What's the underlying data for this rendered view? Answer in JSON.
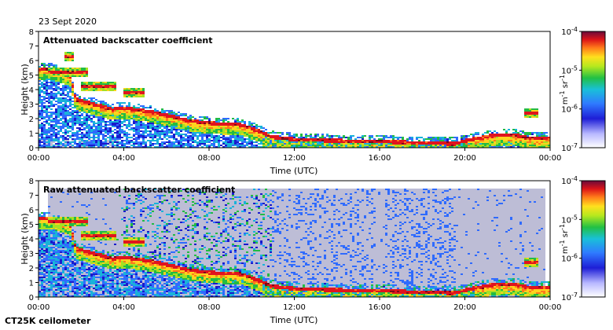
{
  "header": {
    "date": "23 Sept 2020"
  },
  "footer": {
    "instrument": "CT25K ceilometer"
  },
  "colors": {
    "palette": [
      "#1a1acc",
      "#2f6bff",
      "#19b3d9",
      "#22bb44",
      "#a6e022",
      "#ffd21e",
      "#ff7a1a",
      "#e0141e",
      "#7a0a1a"
    ],
    "noise": "#bdbdd6",
    "background": "#ffffff"
  },
  "chart_data": [
    {
      "type": "heatmap",
      "title": "Attenuated backscatter coefficient",
      "xlabel": "Time (UTC)",
      "ylabel": "Height (km)",
      "x_ticks": [
        "00:00",
        "04:00",
        "08:00",
        "12:00",
        "16:00",
        "20:00",
        "00:00"
      ],
      "y_ticks": [
        "0",
        "1",
        "2",
        "3",
        "4",
        "5",
        "6",
        "7",
        "8"
      ],
      "xlim_hours": [
        0,
        24
      ],
      "ylim": [
        0,
        8
      ],
      "colorbar": {
        "scale": "log",
        "range": [
          1e-07,
          0.0001
        ],
        "tick_labels": [
          {
            "base": "10",
            "exp": "-4"
          },
          {
            "base": "10",
            "exp": "-5"
          },
          {
            "base": "10",
            "exp": "-6"
          },
          {
            "base": "10",
            "exp": "-7"
          }
        ],
        "label": {
          "u1": "m",
          "e1": "-1",
          "u2": " sr",
          "e2": "-1"
        }
      },
      "layer_height_km": [
        [
          0.5,
          5.3
        ],
        [
          1.0,
          5.1
        ],
        [
          1.5,
          4.8
        ],
        [
          1.75,
          3.2
        ],
        [
          2.5,
          2.9
        ],
        [
          3.5,
          2.5
        ],
        [
          4.0,
          2.6
        ],
        [
          5.0,
          2.4
        ],
        [
          6.0,
          2.1
        ],
        [
          7.0,
          1.75
        ],
        [
          8.0,
          1.55
        ],
        [
          9.0,
          1.5
        ],
        [
          9.5,
          1.45
        ],
        [
          10.0,
          1.2
        ],
        [
          10.5,
          0.9
        ],
        [
          11.0,
          0.6
        ],
        [
          12.0,
          0.45
        ],
        [
          14.0,
          0.35
        ],
        [
          16.0,
          0.3
        ],
        [
          18.0,
          0.2
        ],
        [
          19.5,
          0.15
        ],
        [
          20.5,
          0.5
        ],
        [
          21.5,
          0.75
        ],
        [
          22.5,
          0.7
        ],
        [
          23.0,
          0.5
        ],
        [
          24.0,
          0.5
        ]
      ],
      "elevated_layers": [
        {
          "t0": 0.4,
          "t1": 2.3,
          "h": 5.2
        },
        {
          "t0": 2.0,
          "t1": 3.7,
          "h": 4.2
        },
        {
          "t0": 4.0,
          "t1": 5.0,
          "h": 3.8
        },
        {
          "t0": 1.2,
          "t1": 1.7,
          "h": 6.3
        },
        {
          "t0": 22.8,
          "t1": 23.5,
          "h": 2.4
        }
      ]
    },
    {
      "type": "heatmap",
      "title": "Raw attenuated backscatter coefficient",
      "xlabel": "Time (UTC)",
      "ylabel": "Height (km)",
      "x_ticks": [
        "00:00",
        "04:00",
        "08:00",
        "12:00",
        "16:00",
        "20:00",
        "00:00"
      ],
      "y_ticks": [
        "0",
        "1",
        "2",
        "3",
        "4",
        "5",
        "6",
        "7",
        "8"
      ],
      "xlim_hours": [
        0,
        24
      ],
      "ylim": [
        0,
        8
      ],
      "colorbar": {
        "scale": "log",
        "range": [
          1e-07,
          0.0001
        ],
        "tick_labels": [
          {
            "base": "10",
            "exp": "-4"
          },
          {
            "base": "10",
            "exp": "-5"
          },
          {
            "base": "10",
            "exp": "-6"
          },
          {
            "base": "10",
            "exp": "-7"
          }
        ],
        "label": {
          "u1": "m",
          "e1": "-1",
          "u2": " sr",
          "e2": "-1"
        }
      },
      "layer_height_km": [
        [
          0.5,
          5.3
        ],
        [
          1.0,
          5.1
        ],
        [
          1.5,
          4.8
        ],
        [
          1.75,
          3.2
        ],
        [
          2.5,
          2.9
        ],
        [
          3.5,
          2.5
        ],
        [
          4.0,
          2.6
        ],
        [
          5.0,
          2.4
        ],
        [
          6.0,
          2.1
        ],
        [
          7.0,
          1.75
        ],
        [
          8.0,
          1.55
        ],
        [
          9.0,
          1.5
        ],
        [
          9.5,
          1.45
        ],
        [
          10.0,
          1.2
        ],
        [
          10.5,
          0.9
        ],
        [
          11.0,
          0.6
        ],
        [
          12.0,
          0.45
        ],
        [
          14.0,
          0.35
        ],
        [
          16.0,
          0.3
        ],
        [
          18.0,
          0.2
        ],
        [
          19.5,
          0.15
        ],
        [
          20.5,
          0.5
        ],
        [
          21.5,
          0.75
        ],
        [
          22.5,
          0.7
        ],
        [
          23.0,
          0.5
        ],
        [
          24.0,
          0.5
        ]
      ],
      "elevated_layers": [
        {
          "t0": 0.4,
          "t1": 2.3,
          "h": 5.2
        },
        {
          "t0": 2.0,
          "t1": 3.7,
          "h": 4.2
        },
        {
          "t0": 4.0,
          "t1": 5.0,
          "h": 3.8
        },
        {
          "t0": 22.8,
          "t1": 23.5,
          "h": 2.4
        }
      ]
    }
  ]
}
